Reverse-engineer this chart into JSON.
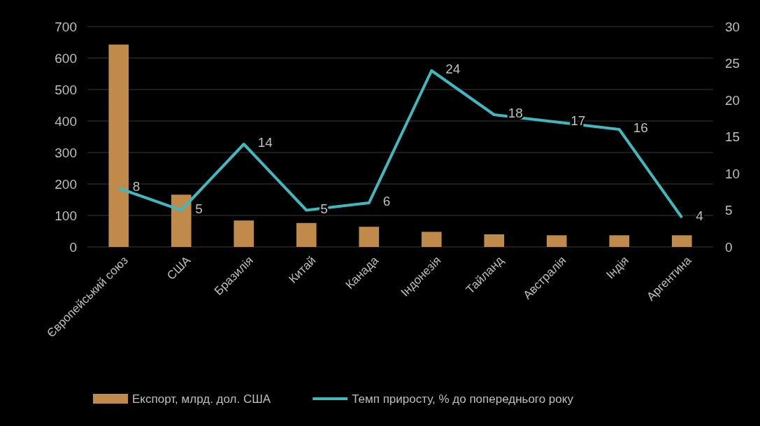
{
  "chart_data": {
    "type": "bar",
    "categories": [
      "Європейський союз",
      "США",
      "Бразилія",
      "Китай",
      "Канада",
      "Індонезія",
      "Тайланд",
      "Австралія",
      "Індія",
      "Аргентина"
    ],
    "series": [
      {
        "name": "Експорт, млрд. дол. США",
        "color": "#c08a4b",
        "values": [
          643,
          166,
          84,
          76,
          64,
          48,
          40,
          37,
          37,
          37
        ]
      },
      {
        "name": "Темп приросту, % до попереднього року",
        "type": "line",
        "axis": "y2",
        "color": "#3fb8be",
        "values": [
          8,
          5,
          14,
          5,
          6,
          24,
          18,
          17,
          16,
          4
        ],
        "data_labels": true
      }
    ],
    "ylim": [
      0,
      700
    ],
    "yticks": [
      0,
      100,
      200,
      300,
      400,
      500,
      600,
      700
    ],
    "y2lim": [
      0,
      30
    ],
    "y2ticks": [
      0,
      5,
      10,
      15,
      20,
      25,
      30
    ],
    "grid": "y",
    "legend": "bottom",
    "marker": "none",
    "line_style": "solid"
  }
}
